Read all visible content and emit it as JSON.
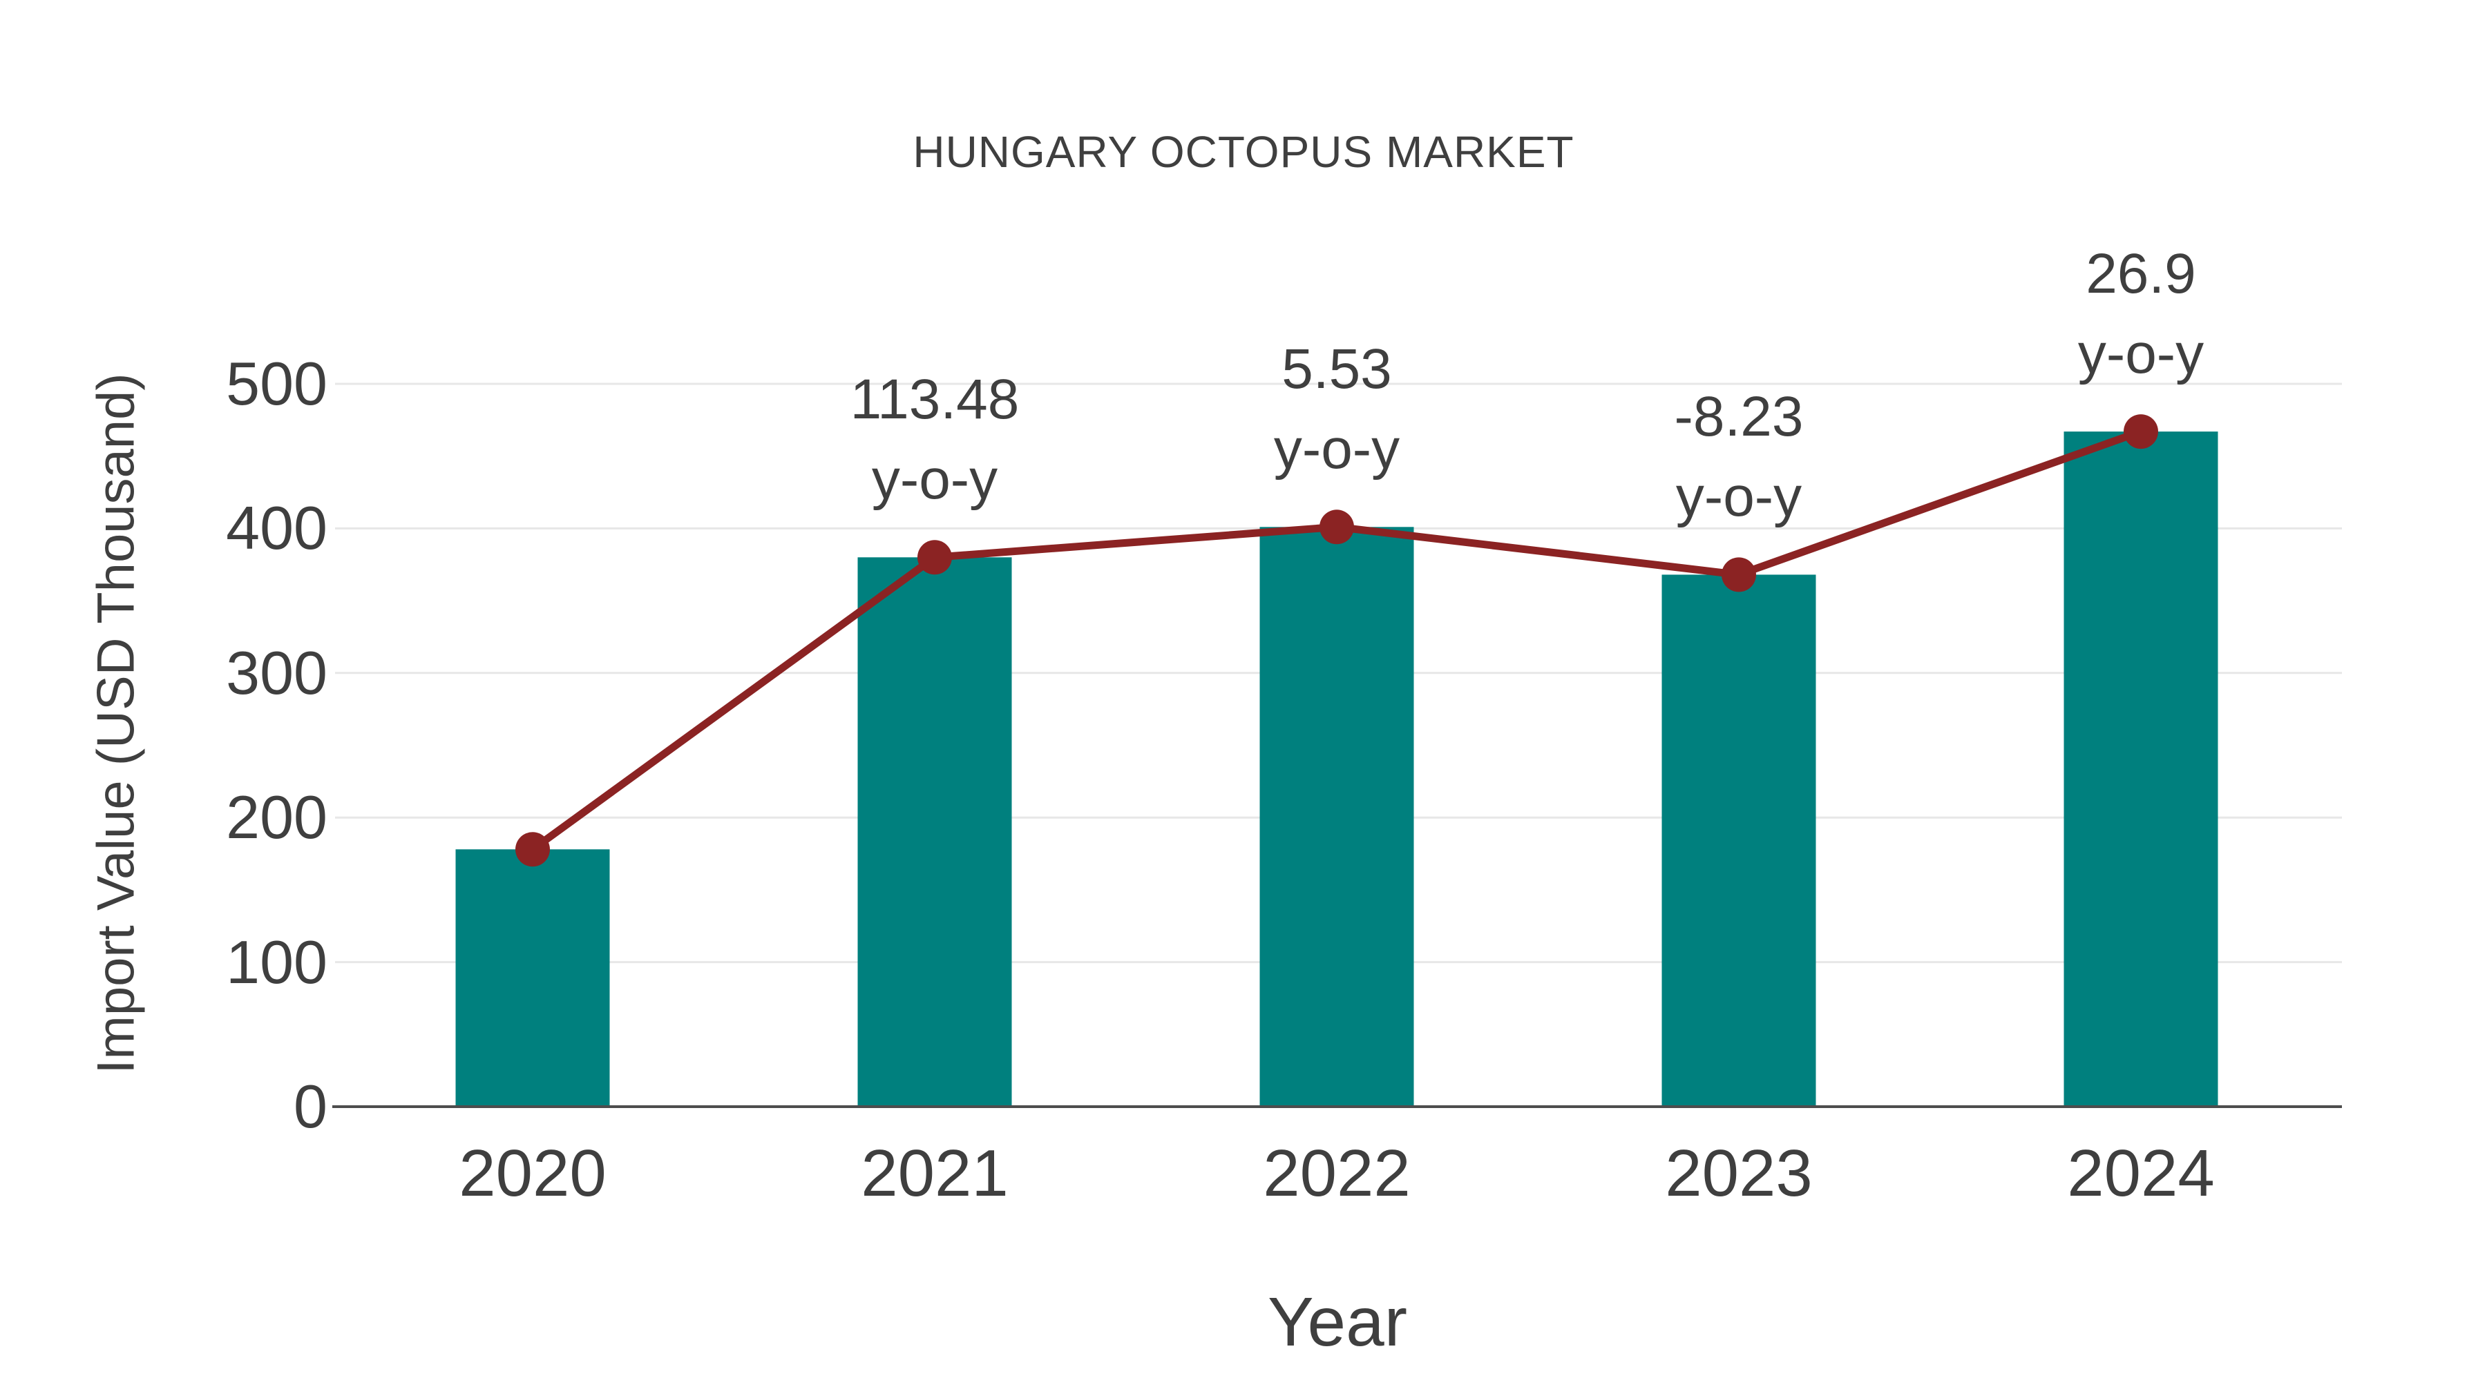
{
  "chart_data": {
    "type": "bar",
    "line_overlay": true,
    "title": "HUNGARY OCTOPUS MARKET",
    "xlabel": "Year",
    "ylabel": "Import Value (USD Thousand)",
    "categories": [
      "2020",
      "2021",
      "2022",
      "2023",
      "2024"
    ],
    "series": [
      {
        "name": "Import Value (USD Thousand)",
        "type": "bar",
        "values": [
          178,
          380,
          401,
          368,
          467
        ]
      },
      {
        "name": "Import Value trend",
        "type": "line",
        "values": [
          178,
          380,
          401,
          368,
          467
        ]
      }
    ],
    "values": [
      178,
      380,
      401,
      368,
      467
    ],
    "yticks": [
      0,
      100,
      200,
      300,
      400,
      500
    ],
    "ylim": [
      0,
      500
    ],
    "grid": "horizontal",
    "legend_position": "none",
    "annotations": [
      {
        "category": "2021",
        "line1": "113.48",
        "line2": "y-o-y"
      },
      {
        "category": "2022",
        "line1": "5.53",
        "line2": "y-o-y"
      },
      {
        "category": "2023",
        "line1": "-8.23",
        "line2": "y-o-y"
      },
      {
        "category": "2024",
        "line1": "26.9",
        "line2": "y-o-y"
      }
    ],
    "colors": {
      "bar": "#00807e",
      "line": "#8b2323",
      "marker": "#8b2323",
      "grid": "#e7e7e7",
      "axis": "#4d4d4d",
      "text": "#3f3f3f",
      "background": "#ffffff"
    }
  }
}
